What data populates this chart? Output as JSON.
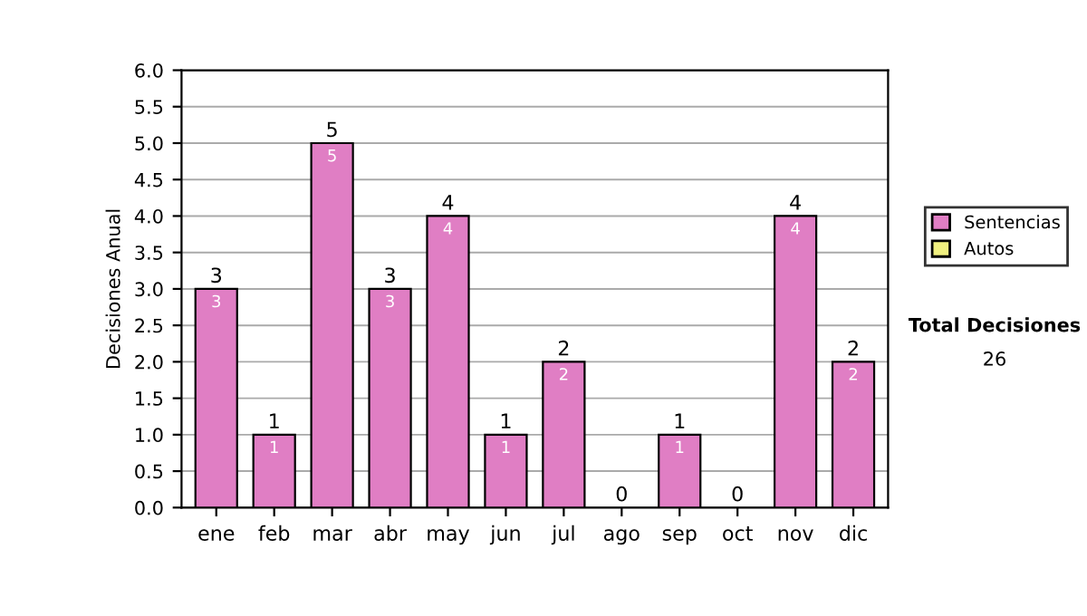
{
  "chart_data": {
    "type": "bar",
    "stacked": true,
    "ylabel": "Decisiones Anual",
    "categories": [
      "ene",
      "feb",
      "mar",
      "abr",
      "may",
      "jun",
      "jul",
      "ago",
      "sep",
      "oct",
      "nov",
      "dic"
    ],
    "series": [
      {
        "name": "Sentencias",
        "color": "#e07ec4",
        "values": [
          3,
          1,
          5,
          3,
          4,
          1,
          2,
          0,
          1,
          0,
          4,
          2
        ],
        "value_labels": [
          "3",
          "1",
          "5",
          "3",
          "4",
          "1",
          "2",
          null,
          "1",
          null,
          "4",
          "2"
        ]
      },
      {
        "name": "Autos",
        "color": "#f0f080",
        "values": [
          0,
          0,
          0,
          0,
          0,
          0,
          0,
          0,
          0,
          0,
          0,
          0
        ]
      }
    ],
    "totals": [
      "3",
      "1",
      "5",
      "3",
      "4",
      "1",
      "2",
      "0",
      "1",
      "0",
      "4",
      "2"
    ],
    "ylim": [
      0,
      6
    ],
    "yticks": [
      {
        "value": 0,
        "label": "0.0"
      },
      {
        "value": 0.5,
        "label": "0.5"
      },
      {
        "value": 1,
        "label": "1.0"
      },
      {
        "value": 1.5,
        "label": "1.5"
      },
      {
        "value": 2,
        "label": "2.0"
      },
      {
        "value": 2.5,
        "label": "2.5"
      },
      {
        "value": 3,
        "label": "3.0"
      },
      {
        "value": 3.5,
        "label": "3.5"
      },
      {
        "value": 4,
        "label": "4.0"
      },
      {
        "value": 4.5,
        "label": "4.5"
      },
      {
        "value": 5,
        "label": "5.0"
      },
      {
        "value": 5.5,
        "label": "5.5"
      },
      {
        "value": 6,
        "label": "6.0"
      }
    ],
    "grid": "y",
    "legend": "right",
    "annotations": [
      "Total Decisiones",
      "26"
    ]
  }
}
